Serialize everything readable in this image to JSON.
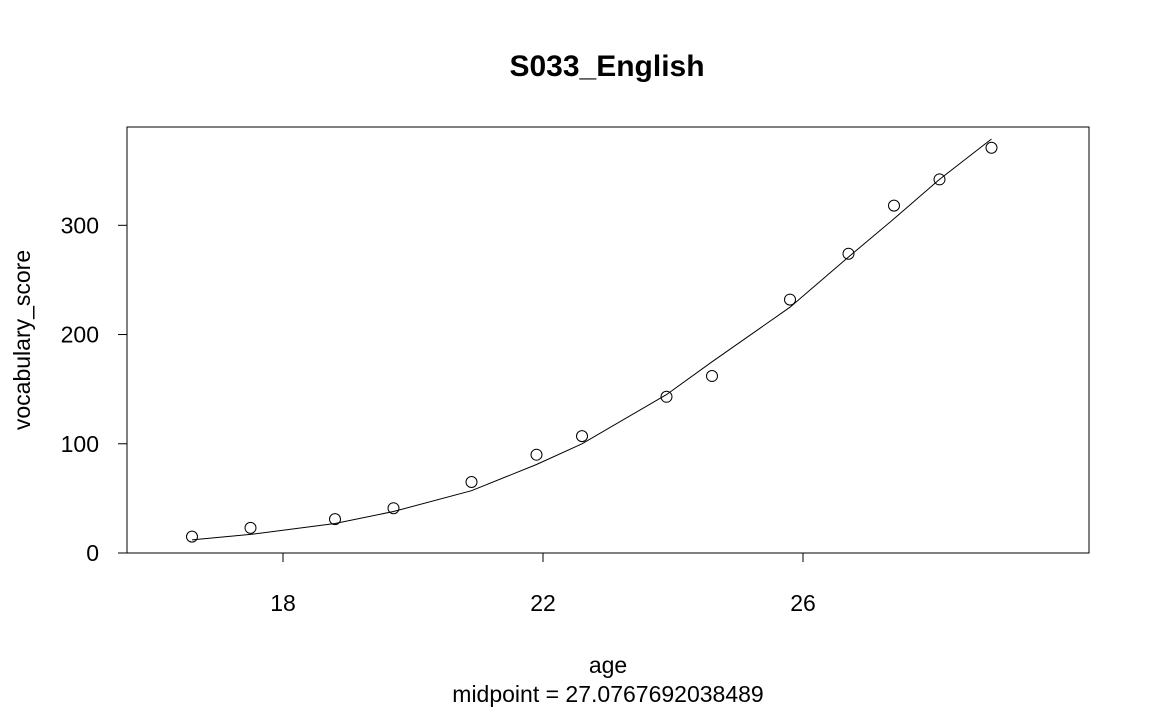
{
  "chart_data": {
    "type": "scatter",
    "title": "S033_English",
    "xlabel": "age",
    "subtitle": "midpoint = 27.0767692038489",
    "ylabel": "vocabulary_score",
    "xlim": [
      15.6,
      30.4
    ],
    "ylim": [
      0,
      390
    ],
    "xticks": [
      18,
      22,
      26
    ],
    "yticks": [
      0,
      100,
      200,
      300
    ],
    "grid": false,
    "legend": "none",
    "series": [
      {
        "kind": "points",
        "marker": "open-circle",
        "x": [
          16.6,
          17.5,
          18.8,
          19.7,
          20.9,
          21.9,
          22.6,
          23.9,
          24.6,
          25.8,
          26.7,
          27.4,
          28.1,
          28.9
        ],
        "y": [
          15,
          23,
          31,
          41,
          65,
          90,
          107,
          143,
          162,
          232,
          274,
          318,
          342,
          371
        ]
      },
      {
        "kind": "line",
        "x": [
          16.6,
          17.5,
          18.8,
          19.7,
          20.9,
          21.9,
          22.6,
          23.9,
          24.6,
          25.8,
          26.7,
          27.4,
          28.1,
          28.9
        ],
        "y": [
          12,
          17,
          27,
          38,
          57,
          81,
          100,
          145,
          175,
          225,
          271,
          306,
          342,
          379
        ]
      }
    ]
  }
}
